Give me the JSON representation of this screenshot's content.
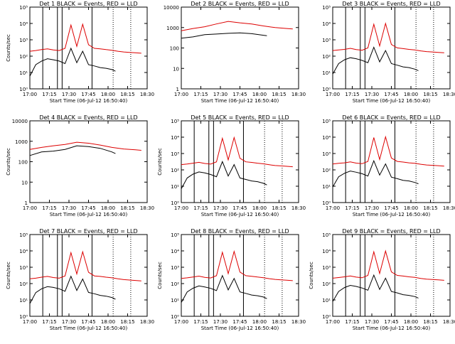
{
  "colors": {
    "events": "#000000",
    "lld": "#dd0000",
    "axis": "#000000"
  },
  "chart_data": [
    {
      "type": "line",
      "title": "Det 1 BLACK = Events, RED = LLD",
      "ylabel": "Counts/sec",
      "xlabel": "Start Time (06-Jul-12 16:50:40)",
      "yscale": "log",
      "ylim": [
        1,
        100000
      ],
      "yticks": [
        "10⁰",
        "10¹",
        "10²",
        "10³",
        "10⁴",
        "10⁵"
      ],
      "xticks": [
        "17:00",
        "17:15",
        "17:30",
        "17:45",
        "18:00",
        "18:15",
        "18:30"
      ],
      "xlim_min": [
        0,
        100
      ],
      "vlines_min": [
        11,
        23.5,
        27.5,
        53
      ],
      "dotted_min": [
        71,
        86
      ],
      "series": [
        {
          "name": "Events",
          "x": [
            0,
            5,
            10,
            15,
            20,
            25,
            30,
            35,
            40,
            45,
            50,
            55,
            60,
            65,
            70,
            73
          ],
          "y": [
            6,
            30,
            50,
            70,
            60,
            50,
            35,
            300,
            40,
            200,
            30,
            25,
            20,
            18,
            15,
            12
          ]
        },
        {
          "name": "LLD",
          "x": [
            0,
            5,
            10,
            15,
            20,
            25,
            30,
            35,
            40,
            45,
            50,
            55,
            60,
            65,
            70,
            75,
            80,
            85,
            90,
            95
          ],
          "y": [
            200,
            220,
            250,
            280,
            240,
            220,
            300,
            8000,
            400,
            9000,
            500,
            300,
            280,
            250,
            230,
            200,
            180,
            170,
            160,
            150
          ]
        }
      ]
    },
    {
      "type": "line",
      "title": "Det 2 BLACK = Events, RED = LLD",
      "ylabel": "",
      "xlabel": "Start Time (06-Jul-12 16:50:40)",
      "yscale": "log",
      "ylim": [
        1,
        10000
      ],
      "yticks": [
        "1",
        "10",
        "100",
        "1000",
        "10000"
      ],
      "xticks": [
        "17:00",
        "17:15",
        "17:30",
        "17:45",
        "18:00",
        "18:15",
        "18:30"
      ],
      "xlim_min": [
        0,
        100
      ],
      "vlines_min": [],
      "dotted_min": [],
      "series": [
        {
          "name": "Events",
          "x": [
            0,
            10,
            20,
            30,
            40,
            50,
            60,
            70,
            73
          ],
          "y": [
            300,
            350,
            450,
            480,
            520,
            550,
            500,
            420,
            400
          ]
        },
        {
          "name": "LLD",
          "x": [
            0,
            10,
            20,
            30,
            40,
            50,
            60,
            70,
            80,
            90,
            95
          ],
          "y": [
            700,
            900,
            1100,
            1500,
            2000,
            1700,
            1500,
            1200,
            1000,
            900,
            850
          ]
        }
      ]
    },
    {
      "type": "line",
      "title": "Det 3 BLACK = Events, RED = LLD",
      "ylabel": "",
      "xlabel": "Start Time (06-Jul-12 16:50:40)",
      "yscale": "log",
      "ylim": [
        1,
        100000
      ],
      "yticks": [
        "10⁰",
        "10¹",
        "10²",
        "10³",
        "10⁴",
        "10⁵"
      ],
      "xticks": [
        "17:00",
        "17:15",
        "17:30",
        "17:45",
        "18:00",
        "18:15",
        "18:30"
      ],
      "xlim_min": [
        0,
        100
      ],
      "vlines_min": [
        11,
        23.5,
        27.5,
        53
      ],
      "dotted_min": [
        71,
        86
      ],
      "series": [
        {
          "name": "Events",
          "x": [
            0,
            5,
            10,
            15,
            20,
            25,
            30,
            35,
            40,
            45,
            50,
            55,
            60,
            65,
            70,
            73
          ],
          "y": [
            8,
            35,
            60,
            80,
            70,
            55,
            40,
            350,
            45,
            220,
            35,
            28,
            22,
            20,
            16,
            13
          ]
        },
        {
          "name": "LLD",
          "x": [
            0,
            5,
            10,
            15,
            20,
            25,
            30,
            35,
            40,
            45,
            50,
            55,
            60,
            65,
            70,
            75,
            80,
            85,
            90,
            95
          ],
          "y": [
            220,
            240,
            260,
            300,
            250,
            230,
            320,
            9000,
            420,
            10000,
            520,
            320,
            290,
            260,
            240,
            210,
            190,
            180,
            170,
            160
          ]
        }
      ]
    },
    {
      "type": "line",
      "title": "Det 4 BLACK = Events, RED = LLD",
      "ylabel": "Counts/sec",
      "xlabel": "Start Time (06-Jul-12 16:50:40)",
      "yscale": "log",
      "ylim": [
        1,
        10000
      ],
      "yticks": [
        "1",
        "10",
        "100",
        "1000",
        "10000"
      ],
      "xticks": [
        "17:00",
        "17:15",
        "17:30",
        "17:45",
        "18:00",
        "18:15",
        "18:30"
      ],
      "xlim_min": [
        0,
        100
      ],
      "vlines_min": [],
      "dotted_min": [],
      "series": [
        {
          "name": "Events",
          "x": [
            0,
            10,
            20,
            30,
            40,
            50,
            60,
            70,
            73
          ],
          "y": [
            200,
            300,
            330,
            400,
            600,
            550,
            450,
            300,
            250
          ]
        },
        {
          "name": "LLD",
          "x": [
            0,
            10,
            20,
            30,
            40,
            50,
            60,
            70,
            80,
            90,
            95
          ],
          "y": [
            400,
            500,
            600,
            700,
            900,
            800,
            650,
            500,
            420,
            380,
            360
          ]
        }
      ]
    },
    {
      "type": "line",
      "title": "Det 5 BLACK = Events, RED = LLD",
      "ylabel": "Counts/sec",
      "xlabel": "Start Time (06-Jul-12 16:50:40)",
      "yscale": "log",
      "ylim": [
        1,
        100000
      ],
      "yticks": [
        "10⁰",
        "10¹",
        "10²",
        "10³",
        "10⁴",
        "10⁵"
      ],
      "xticks": [
        "17:00",
        "17:15",
        "17:30",
        "17:45",
        "18:00",
        "18:15",
        "18:30"
      ],
      "xlim_min": [
        0,
        100
      ],
      "vlines_min": [
        11,
        23.5,
        27.5,
        53
      ],
      "dotted_min": [
        71,
        86
      ],
      "series": [
        {
          "name": "Events",
          "x": [
            0,
            5,
            10,
            15,
            20,
            25,
            30,
            35,
            40,
            45,
            50,
            55,
            60,
            65,
            70,
            73
          ],
          "y": [
            7,
            32,
            55,
            75,
            65,
            52,
            38,
            320,
            42,
            210,
            32,
            26,
            21,
            19,
            15,
            12
          ]
        },
        {
          "name": "LLD",
          "x": [
            0,
            5,
            10,
            15,
            20,
            25,
            30,
            35,
            40,
            45,
            50,
            55,
            60,
            65,
            70,
            75,
            80,
            85,
            90,
            95
          ],
          "y": [
            210,
            230,
            255,
            290,
            245,
            225,
            310,
            8500,
            410,
            9500,
            510,
            310,
            285,
            255,
            235,
            205,
            185,
            175,
            165,
            155
          ]
        }
      ]
    },
    {
      "type": "line",
      "title": "Det 6 BLACK = Events, RED = LLD",
      "ylabel": "",
      "xlabel": "Start Time (06-Jul-12 16:50:40)",
      "yscale": "log",
      "ylim": [
        1,
        100000
      ],
      "yticks": [
        "10⁰",
        "10¹",
        "10²",
        "10³",
        "10⁴",
        "10⁵"
      ],
      "xticks": [
        "17:00",
        "17:15",
        "17:30",
        "17:45",
        "18:00",
        "18:15",
        "18:30"
      ],
      "xlim_min": [
        0,
        100
      ],
      "vlines_min": [
        11,
        23.5,
        27.5,
        53
      ],
      "dotted_min": [
        71,
        86
      ],
      "series": [
        {
          "name": "Events",
          "x": [
            0,
            5,
            10,
            15,
            20,
            25,
            30,
            35,
            40,
            45,
            50,
            55,
            60,
            65,
            70,
            73
          ],
          "y": [
            9,
            38,
            62,
            85,
            72,
            58,
            42,
            360,
            48,
            230,
            36,
            29,
            23,
            21,
            17,
            14
          ]
        },
        {
          "name": "LLD",
          "x": [
            0,
            5,
            10,
            15,
            20,
            25,
            30,
            35,
            40,
            45,
            50,
            55,
            60,
            65,
            70,
            75,
            80,
            85,
            90,
            95
          ],
          "y": [
            230,
            250,
            270,
            310,
            260,
            240,
            330,
            9500,
            430,
            10500,
            530,
            330,
            300,
            270,
            250,
            220,
            200,
            190,
            180,
            170
          ]
        }
      ]
    },
    {
      "type": "line",
      "title": "Det 7 BLACK = Events, RED = LLD",
      "ylabel": "Counts/sec",
      "xlabel": "Start Time (06-Jul-12 16:50:40)",
      "yscale": "log",
      "ylim": [
        1,
        100000
      ],
      "yticks": [
        "10⁰",
        "10¹",
        "10²",
        "10³",
        "10⁴",
        "10⁵"
      ],
      "xticks": [
        "17:00",
        "17:15",
        "17:30",
        "17:45",
        "18:00",
        "18:15",
        "18:30"
      ],
      "xlim_min": [
        0,
        100
      ],
      "vlines_min": [
        11,
        23.5,
        27.5,
        53
      ],
      "dotted_min": [
        71,
        86
      ],
      "series": [
        {
          "name": "Events",
          "x": [
            0,
            5,
            10,
            15,
            20,
            25,
            30,
            35,
            40,
            45,
            50,
            55,
            60,
            65,
            70,
            73
          ],
          "y": [
            6,
            28,
            48,
            65,
            58,
            48,
            34,
            280,
            38,
            190,
            29,
            24,
            19,
            17,
            14,
            11
          ]
        },
        {
          "name": "LLD",
          "x": [
            0,
            5,
            10,
            15,
            20,
            25,
            30,
            35,
            40,
            45,
            50,
            55,
            60,
            65,
            70,
            75,
            80,
            85,
            90,
            95
          ],
          "y": [
            195,
            215,
            245,
            275,
            235,
            215,
            295,
            7800,
            390,
            8800,
            490,
            295,
            275,
            245,
            225,
            195,
            175,
            165,
            155,
            145
          ]
        }
      ]
    },
    {
      "type": "line",
      "title": "Det 8 BLACK = Events, RED = LLD",
      "ylabel": "Counts/sec",
      "xlabel": "Start Time (06-Jul-12 16:50:40)",
      "yscale": "log",
      "ylim": [
        1,
        100000
      ],
      "yticks": [
        "10⁰",
        "10¹",
        "10²",
        "10³",
        "10⁴",
        "10⁵"
      ],
      "xticks": [
        "17:00",
        "17:15",
        "17:30",
        "17:45",
        "18:00",
        "18:15",
        "18:30"
      ],
      "xlim_min": [
        0,
        100
      ],
      "vlines_min": [
        11,
        23.5,
        27.5,
        53
      ],
      "dotted_min": [
        71,
        86
      ],
      "series": [
        {
          "name": "Events",
          "x": [
            0,
            5,
            10,
            15,
            20,
            25,
            30,
            35,
            40,
            45,
            50,
            55,
            60,
            65,
            70,
            73
          ],
          "y": [
            7,
            31,
            52,
            72,
            62,
            51,
            37,
            310,
            41,
            205,
            31,
            25,
            20,
            18,
            15,
            12
          ]
        },
        {
          "name": "LLD",
          "x": [
            0,
            5,
            10,
            15,
            20,
            25,
            30,
            35,
            40,
            45,
            50,
            55,
            60,
            65,
            70,
            75,
            80,
            85,
            90,
            95
          ],
          "y": [
            205,
            225,
            250,
            285,
            240,
            220,
            305,
            8200,
            405,
            9200,
            505,
            305,
            280,
            250,
            230,
            200,
            180,
            170,
            160,
            150
          ]
        }
      ]
    },
    {
      "type": "line",
      "title": "Det 9 BLACK = Events, RED = LLD",
      "ylabel": "Counts/sec",
      "xlabel": "Start Time (06-Jul-12 16:50:40)",
      "yscale": "log",
      "ylim": [
        1,
        100000
      ],
      "yticks": [
        "10⁰",
        "10¹",
        "10²",
        "10³",
        "10⁴",
        "10⁵"
      ],
      "xticks": [
        "17:00",
        "17:15",
        "17:30",
        "17:45",
        "18:00",
        "18:15",
        "18:30"
      ],
      "xlim_min": [
        0,
        100
      ],
      "vlines_min": [
        11,
        23.5,
        27.5,
        53
      ],
      "dotted_min": [
        71,
        86
      ],
      "series": [
        {
          "name": "Events",
          "x": [
            0,
            5,
            10,
            15,
            20,
            25,
            30,
            35,
            40,
            45,
            50,
            55,
            60,
            65,
            70,
            73
          ],
          "y": [
            8,
            33,
            57,
            78,
            67,
            54,
            39,
            330,
            44,
            215,
            33,
            27,
            21,
            19,
            16,
            13
          ]
        },
        {
          "name": "LLD",
          "x": [
            0,
            5,
            10,
            15,
            20,
            25,
            30,
            35,
            40,
            45,
            50,
            55,
            60,
            65,
            70,
            75,
            80,
            85,
            90,
            95
          ],
          "y": [
            215,
            235,
            258,
            295,
            248,
            228,
            315,
            8800,
            415,
            9800,
            515,
            315,
            288,
            258,
            238,
            208,
            188,
            178,
            168,
            158
          ]
        }
      ]
    }
  ]
}
